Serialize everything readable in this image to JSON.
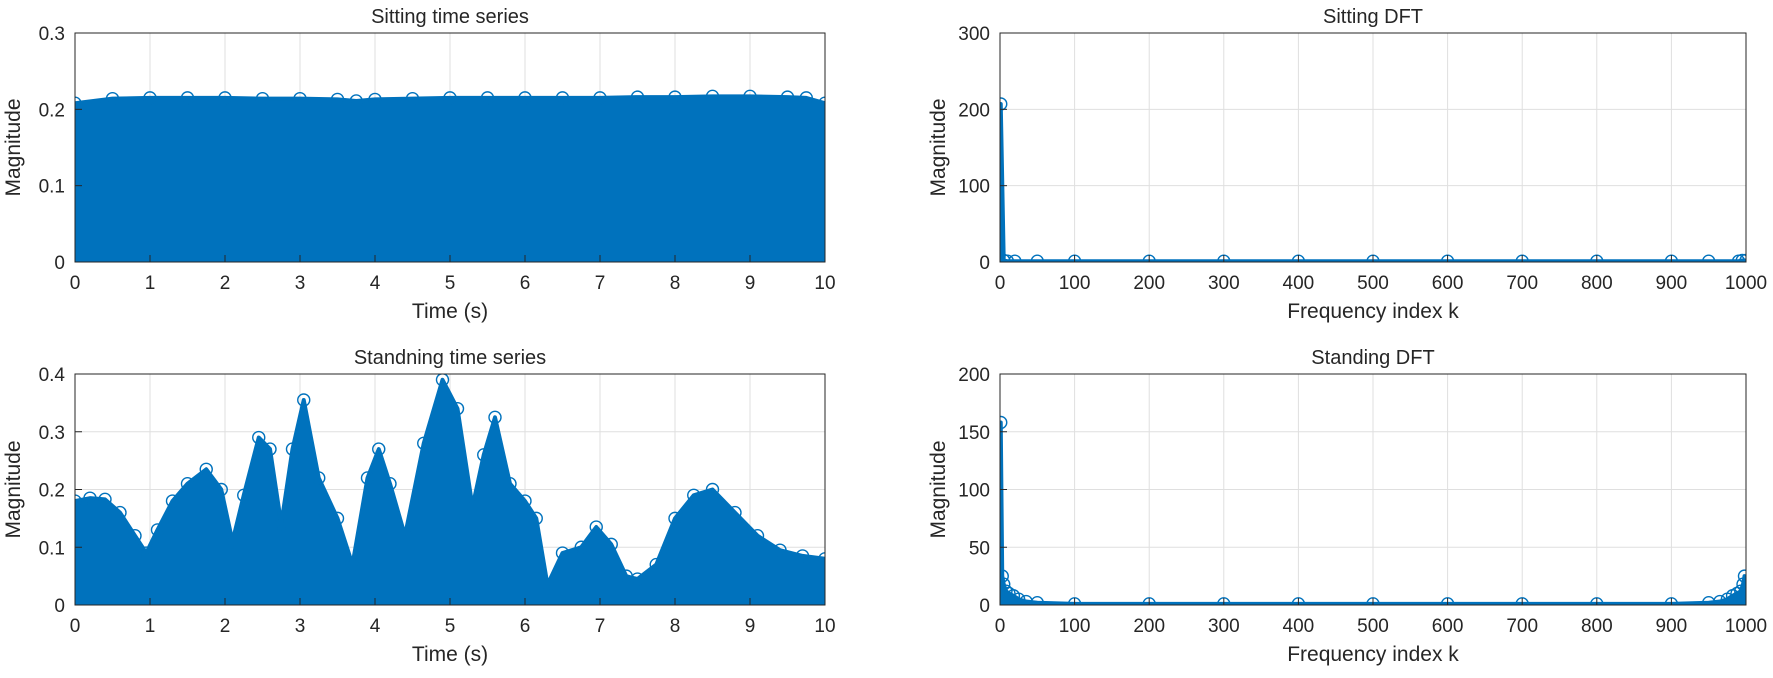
{
  "figure": {
    "accent_color": "#0072bd",
    "axis_color": "#262626",
    "grid_color": "#dfdfdf"
  },
  "chart_data": [
    {
      "id": "sitting-time",
      "type": "stem",
      "marker": "circle",
      "title": "Sitting time series",
      "xlabel": "Time (s)",
      "ylabel": "Magnitude",
      "xlim": [
        0,
        10
      ],
      "ylim": [
        0,
        0.3
      ],
      "xticks": [
        0,
        1,
        2,
        3,
        4,
        5,
        6,
        7,
        8,
        9,
        10
      ],
      "yticks": [
        0,
        0.1,
        0.2,
        0.3
      ],
      "grid": true,
      "series": [
        {
          "marker_color": "#0072bd",
          "x": [
            0,
            0.5,
            1,
            1.5,
            2,
            2.5,
            3,
            3.5,
            3.75,
            4,
            4.5,
            5,
            5.5,
            6,
            6.5,
            7,
            7.5,
            8,
            8.5,
            9,
            9.5,
            9.75,
            10
          ],
          "y": [
            0.208,
            0.214,
            0.215,
            0.215,
            0.215,
            0.214,
            0.214,
            0.213,
            0.211,
            0.213,
            0.214,
            0.215,
            0.215,
            0.215,
            0.215,
            0.215,
            0.216,
            0.216,
            0.217,
            0.217,
            0.216,
            0.215,
            0.208
          ]
        }
      ]
    },
    {
      "id": "sitting-dft",
      "type": "stem",
      "marker": "circle",
      "title": "Sitting DFT",
      "xlabel": "Frequency index k",
      "ylabel": "Magnitude",
      "xlim": [
        0,
        1000
      ],
      "ylim": [
        0,
        300
      ],
      "xticks": [
        0,
        100,
        200,
        300,
        400,
        500,
        600,
        700,
        800,
        900,
        1000
      ],
      "yticks": [
        0,
        100,
        200,
        300
      ],
      "grid": true,
      "series": [
        {
          "marker_color": "#0072bd",
          "x": [
            1,
            5,
            10,
            20,
            50,
            100,
            200,
            300,
            400,
            500,
            600,
            700,
            800,
            900,
            950,
            990,
            995,
            1000
          ],
          "y": [
            207,
            2,
            1,
            1,
            1,
            1,
            1,
            1,
            1,
            1,
            1,
            1,
            1,
            1,
            1,
            1,
            2,
            2
          ]
        }
      ]
    },
    {
      "id": "standing-time",
      "type": "stem",
      "marker": "circle",
      "title": "Standning time series",
      "xlabel": "Time (s)",
      "ylabel": "Magnitude",
      "xlim": [
        0,
        10
      ],
      "ylim": [
        0,
        0.4
      ],
      "xticks": [
        0,
        1,
        2,
        3,
        4,
        5,
        6,
        7,
        8,
        9,
        10
      ],
      "yticks": [
        0,
        0.1,
        0.2,
        0.3,
        0.4
      ],
      "grid": true,
      "series": [
        {
          "marker_color": "#0072bd",
          "x": [
            0,
            0.2,
            0.4,
            0.6,
            0.8,
            0.95,
            1.1,
            1.3,
            1.5,
            1.75,
            1.95,
            2.1,
            2.25,
            2.45,
            2.6,
            2.75,
            2.9,
            3.05,
            3.25,
            3.5,
            3.7,
            3.9,
            4.05,
            4.2,
            4.4,
            4.65,
            4.9,
            5.1,
            5.3,
            5.45,
            5.6,
            5.8,
            6.0,
            6.15,
            6.3,
            6.5,
            6.75,
            6.95,
            7.15,
            7.35,
            7.5,
            7.75,
            8.0,
            8.25,
            8.5,
            8.8,
            9.1,
            9.4,
            9.7,
            10.0
          ],
          "y": [
            0.18,
            0.185,
            0.183,
            0.16,
            0.12,
            0.09,
            0.13,
            0.18,
            0.21,
            0.235,
            0.2,
            0.11,
            0.19,
            0.29,
            0.27,
            0.14,
            0.27,
            0.355,
            0.22,
            0.15,
            0.07,
            0.22,
            0.27,
            0.21,
            0.12,
            0.28,
            0.39,
            0.34,
            0.17,
            0.26,
            0.325,
            0.21,
            0.18,
            0.15,
            0.035,
            0.09,
            0.1,
            0.135,
            0.105,
            0.05,
            0.045,
            0.07,
            0.15,
            0.19,
            0.2,
            0.16,
            0.12,
            0.095,
            0.085,
            0.08
          ]
        }
      ]
    },
    {
      "id": "standing-dft",
      "type": "stem",
      "marker": "circle",
      "title": "Standing DFT",
      "xlabel": "Frequency index k",
      "ylabel": "Magnitude",
      "xlim": [
        0,
        1000
      ],
      "ylim": [
        0,
        200
      ],
      "xticks": [
        0,
        100,
        200,
        300,
        400,
        500,
        600,
        700,
        800,
        900,
        1000
      ],
      "yticks": [
        0,
        50,
        100,
        150,
        200
      ],
      "grid": true,
      "series": [
        {
          "marker_color": "#0072bd",
          "x": [
            1,
            3,
            5,
            8,
            12,
            18,
            25,
            35,
            50,
            100,
            200,
            300,
            400,
            500,
            600,
            700,
            800,
            900,
            950,
            965,
            975,
            982,
            988,
            993,
            996,
            998,
            1000
          ],
          "y": [
            158,
            25,
            18,
            12,
            10,
            8,
            5,
            3,
            2,
            1,
            1,
            1,
            1,
            1,
            1,
            1,
            1,
            1,
            2,
            3,
            5,
            8,
            10,
            12,
            18,
            25,
            10
          ]
        }
      ]
    }
  ]
}
